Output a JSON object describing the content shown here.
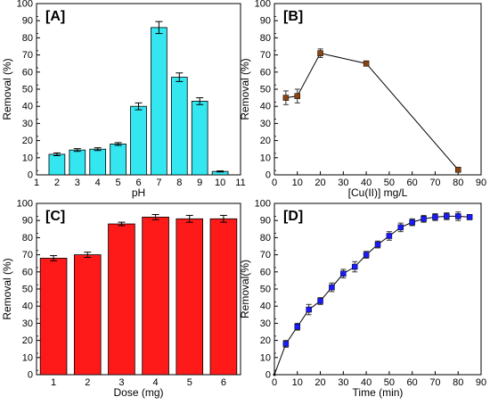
{
  "figure": {
    "background": "#ffffff"
  },
  "chart_data": [
    {
      "panel_label": "[A]",
      "type": "bar",
      "xlabel": "pH",
      "ylabel": "Removal (%)",
      "xlim": [
        1,
        11
      ],
      "ylim": [
        0,
        100
      ],
      "xticks": [
        1,
        2,
        3,
        4,
        5,
        6,
        7,
        8,
        9,
        10,
        11
      ],
      "yticks": [
        0,
        10,
        20,
        30,
        40,
        50,
        60,
        70,
        80,
        90,
        100
      ],
      "x": [
        2,
        3,
        4,
        5,
        6,
        7,
        8,
        9,
        10
      ],
      "values": [
        12,
        14.5,
        15,
        18,
        40,
        86,
        57,
        43,
        2
      ],
      "errors": [
        0.8,
        0.8,
        0.8,
        0.8,
        2,
        3.5,
        2.5,
        2,
        0.3
      ],
      "bar_color": "#33e6f0",
      "grid": false
    },
    {
      "panel_label": "[B]",
      "type": "line",
      "xlabel": "[Cu(II)] mg/L",
      "ylabel": "Removal (%)",
      "xlim": [
        0,
        90
      ],
      "ylim": [
        0,
        100
      ],
      "xticks": [
        0,
        10,
        20,
        30,
        40,
        50,
        60,
        70,
        80,
        90
      ],
      "yticks": [
        0,
        10,
        20,
        30,
        40,
        50,
        60,
        70,
        80,
        90,
        100
      ],
      "x": [
        5,
        10,
        20,
        40,
        80
      ],
      "y": [
        45,
        46,
        71,
        65,
        3
      ],
      "errors": [
        4,
        4,
        2.5,
        1.5,
        0.5
      ],
      "marker_color": "#8b4513",
      "grid": false
    },
    {
      "panel_label": "[C]",
      "type": "bar",
      "xlabel": "Dose (mg)",
      "ylabel": "Removal (%)",
      "xlim": [
        0.5,
        6.5
      ],
      "ylim": [
        0,
        100
      ],
      "xticks": [
        1,
        2,
        3,
        4,
        5,
        6
      ],
      "yticks": [
        0,
        10,
        20,
        30,
        40,
        50,
        60,
        70,
        80,
        90,
        100
      ],
      "x": [
        1,
        2,
        3,
        4,
        5,
        6
      ],
      "values": [
        68,
        70,
        88,
        92,
        91,
        91
      ],
      "errors": [
        1.5,
        1.5,
        1,
        1.5,
        2,
        2
      ],
      "bar_color": "#ff1a1a",
      "grid": false
    },
    {
      "panel_label": "[D]",
      "type": "line",
      "xlabel": "Time (min)",
      "ylabel": "Removal(%)",
      "xlim": [
        0,
        90
      ],
      "ylim": [
        0,
        100
      ],
      "xticks": [
        0,
        10,
        20,
        30,
        40,
        50,
        60,
        70,
        80,
        90
      ],
      "yticks": [
        0,
        10,
        20,
        30,
        40,
        50,
        60,
        70,
        80,
        90,
        100
      ],
      "x": [
        0,
        5,
        10,
        15,
        20,
        25,
        30,
        35,
        40,
        45,
        50,
        55,
        60,
        65,
        70,
        75,
        80,
        85
      ],
      "y": [
        0,
        18,
        28,
        38,
        43,
        51,
        59,
        63,
        70,
        76,
        81,
        86,
        89,
        91,
        92,
        92.5,
        92.5,
        92
      ],
      "errors": [
        0,
        2,
        2,
        3,
        2,
        2.5,
        2.5,
        3,
        2,
        2,
        2.5,
        2.5,
        2,
        2,
        2,
        2,
        2.5,
        1.5
      ],
      "marker_color": "#1a1aff",
      "grid": false
    }
  ]
}
